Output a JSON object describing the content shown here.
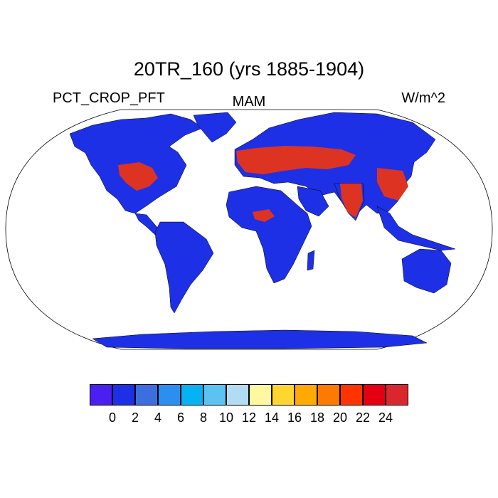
{
  "title": "20TR_160 (yrs 1885-1904)",
  "left_string": "PCT_CROP_PFT",
  "center_string": "MAM",
  "right_string": "W/m^2",
  "colorbar": {
    "colors": [
      "#4a1fef",
      "#1e30e6",
      "#3c6ee0",
      "#2b8ff0",
      "#06b2f2",
      "#5cc2f2",
      "#b0dcf4",
      "#fff8a0",
      "#ffd630",
      "#ffaa00",
      "#ff7a00",
      "#ff3400",
      "#e40012",
      "#d8282e"
    ],
    "labels": [
      "0",
      "2",
      "4",
      "6",
      "8",
      "10",
      "12",
      "14",
      "16",
      "18",
      "20",
      "22",
      "24"
    ]
  },
  "map": {
    "projection": "robinson",
    "land_color": "#1e30e6",
    "high_color": "#dd3322",
    "ocean_color": "#ffffff"
  }
}
